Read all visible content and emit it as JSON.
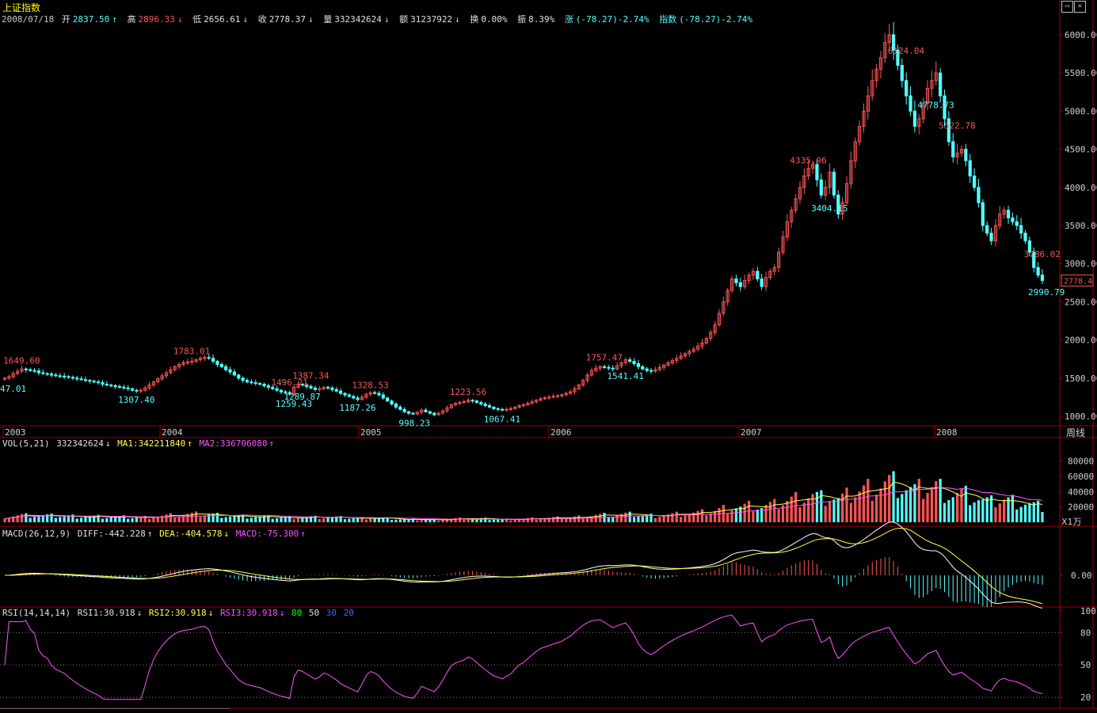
{
  "title": "上证指数",
  "header": {
    "date": "2008/07/18",
    "open_label": "开",
    "open": "2837.50",
    "high_label": "高",
    "high": "2896.33",
    "low_label": "低",
    "low": "2656.61",
    "close_label": "收",
    "close": "2778.37",
    "vol_label": "量",
    "vol": "332342624",
    "amount_label": "额",
    "amount": "31237922",
    "turnover_label": "换",
    "turnover": "0.00%",
    "amplitude_label": "振",
    "amplitude": "8.39%",
    "change_label": "涨",
    "change": "(-78.27)-2.74%",
    "index_label": "指数",
    "index_change": "(-78.27)-2.74%"
  },
  "period_label": "周线",
  "current_price_tag": "2778.4",
  "volume_unit": "X1万",
  "vol_header": {
    "name": "VOL(5,21)",
    "value": "332342624",
    "ma1": "MA1:342211840",
    "ma2": "MA2:336706080"
  },
  "macd_header": {
    "name": "MACD(26,12,9)",
    "diff": "DIFF:-442.228",
    "dea": "DEA:-404.578",
    "macd": "MACD:-75.300"
  },
  "rsi_header": {
    "name": "RSI(14,14,14)",
    "rsi1": "RSI1:30.918",
    "rsi2": "RSI2:30.918",
    "rsi3": "RSI3:30.918",
    "l80": "80",
    "l50": "50",
    "l30": "30",
    "l20": "20"
  },
  "colors": {
    "up": "#ff5454",
    "down": "#54ffff",
    "grid": "#a00000",
    "ma1": "#ffff54",
    "ma2": "#ff54ff",
    "rsi": "#ff54ff"
  },
  "chart_data": [
    {
      "type": "candlestick",
      "title": "上证指数 周线",
      "x_year_labels": [
        "2003",
        "2004",
        "2005",
        "2006",
        "2007",
        "2008"
      ],
      "y_ticks": [
        1000,
        1500,
        2000,
        2500,
        3000,
        3500,
        4000,
        4500,
        5000,
        5500,
        6000
      ],
      "y_tick_labels": [
        "1000.00",
        "1500.00",
        "2000.00",
        "2500.00",
        "3000.00",
        "3500.00",
        "4000.00",
        "4500.00",
        "5000.00",
        "5500.00",
        "6000.00"
      ],
      "ylim": [
        900,
        6200
      ],
      "close_series": [
        1500,
        1520,
        1560,
        1590,
        1620,
        1610,
        1600,
        1595,
        1570,
        1560,
        1555,
        1540,
        1530,
        1525,
        1520,
        1510,
        1500,
        1490,
        1480,
        1470,
        1460,
        1450,
        1440,
        1420,
        1410,
        1400,
        1390,
        1380,
        1370,
        1360,
        1340,
        1330,
        1340,
        1370,
        1410,
        1450,
        1490,
        1530,
        1570,
        1610,
        1650,
        1680,
        1700,
        1710,
        1720,
        1740,
        1760,
        1770,
        1760,
        1720,
        1680,
        1650,
        1610,
        1580,
        1540,
        1500,
        1470,
        1450,
        1440,
        1430,
        1420,
        1400,
        1380,
        1360,
        1340,
        1320,
        1310,
        1290,
        1380,
        1420,
        1410,
        1390,
        1370,
        1350,
        1360,
        1380,
        1370,
        1350,
        1330,
        1300,
        1280,
        1260,
        1240,
        1220,
        1250,
        1290,
        1310,
        1300,
        1280,
        1240,
        1200,
        1160,
        1120,
        1090,
        1060,
        1040,
        1030,
        1050,
        1080,
        1060,
        1040,
        1020,
        1040,
        1070,
        1110,
        1150,
        1170,
        1180,
        1190,
        1210,
        1200,
        1180,
        1160,
        1140,
        1120,
        1100,
        1090,
        1080,
        1090,
        1100,
        1120,
        1140,
        1150,
        1170,
        1190,
        1210,
        1230,
        1240,
        1250,
        1260,
        1270,
        1280,
        1300,
        1320,
        1360,
        1410,
        1470,
        1540,
        1600,
        1630,
        1650,
        1640,
        1630,
        1620,
        1660,
        1700,
        1740,
        1720,
        1690,
        1650,
        1620,
        1600,
        1590,
        1610,
        1640,
        1670,
        1700,
        1730,
        1760,
        1790,
        1820,
        1850,
        1880,
        1920,
        1960,
        2020,
        2100,
        2200,
        2350,
        2500,
        2650,
        2800,
        2750,
        2700,
        2780,
        2850,
        2900,
        2800,
        2700,
        2820,
        2900,
        2950,
        3150,
        3350,
        3550,
        3700,
        3850,
        4000,
        4150,
        4250,
        4300,
        4100,
        3900,
        4000,
        4200,
        3900,
        3650,
        3800,
        4050,
        4350,
        4600,
        4800,
        5000,
        5200,
        5400,
        5550,
        5700,
        5900,
        6000,
        5800,
        5600,
        5400,
        5200,
        5000,
        4800,
        4900,
        5100,
        5300,
        5400,
        5500,
        5200,
        4900,
        4600,
        4400,
        4450,
        4500,
        4350,
        4150,
        4000,
        3800,
        3500,
        3400,
        3300,
        3500,
        3650,
        3700,
        3600,
        3550,
        3500,
        3400,
        3300,
        3150,
        2950,
        2850,
        2780
      ],
      "peak_annotations": [
        {
          "label": "1649.60",
          "kind": "high"
        },
        {
          "label": "47.01",
          "kind": "low"
        },
        {
          "label": "1783.01",
          "kind": "high"
        },
        {
          "label": "1307.40",
          "kind": "low"
        },
        {
          "label": "1496.21",
          "kind": "high"
        },
        {
          "label": "1259.43",
          "kind": "low"
        },
        {
          "label": "1387.34",
          "kind": "high"
        },
        {
          "label": "1289.87",
          "kind": "low"
        },
        {
          "label": "1328.53",
          "kind": "high"
        },
        {
          "label": "1187.26",
          "kind": "low"
        },
        {
          "label": "998.23",
          "kind": "low"
        },
        {
          "label": "1223.56",
          "kind": "high"
        },
        {
          "label": "1067.41",
          "kind": "low"
        },
        {
          "label": "1757.47",
          "kind": "high"
        },
        {
          "label": "1541.41",
          "kind": "low"
        },
        {
          "label": "4335.96",
          "kind": "high"
        },
        {
          "label": "3404.15",
          "kind": "low"
        },
        {
          "label": "6124.04",
          "kind": "high"
        },
        {
          "label": "4778.73",
          "kind": "low"
        },
        {
          "label": "5522.78",
          "kind": "high"
        },
        {
          "label": "3786.02",
          "kind": "high"
        },
        {
          "label": "2990.79",
          "kind": "low"
        }
      ]
    },
    {
      "type": "bar",
      "title": "VOL(5,21)",
      "y_tick_labels": [
        "20000",
        "40000",
        "60000",
        "80000"
      ],
      "y_ticks": [
        20000,
        40000,
        60000,
        80000
      ],
      "ylim": [
        0,
        95000
      ]
    },
    {
      "type": "line",
      "title": "MACD(26,12,9)",
      "y_tick_labels": [
        "0.00"
      ],
      "y_ticks": [
        0
      ]
    },
    {
      "type": "line",
      "title": "RSI(14,14,14)",
      "y_tick_labels": [
        "20",
        "50",
        "80",
        "100"
      ],
      "y_ticks": [
        20,
        50,
        80,
        100
      ],
      "ylim": [
        15,
        100
      ]
    }
  ]
}
